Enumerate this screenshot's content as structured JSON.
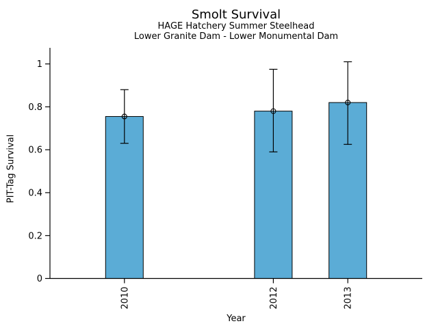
{
  "page": {
    "background": "#FFFFFF"
  },
  "chart_data": {
    "type": "bar",
    "title": "Smolt Survival",
    "subtitle_line1": "HAGE Hatchery Summer Steelhead",
    "subtitle_line2": "Lower Granite Dam - Lower Monumental Dam",
    "xlabel": "Year",
    "ylabel": "PIT-Tag Survival",
    "categories": [
      "2010",
      "2012",
      "2013"
    ],
    "x_numeric": [
      2010,
      2012,
      2013
    ],
    "x_domain": [
      2009,
      2014
    ],
    "series": [
      {
        "name": "PIT-Tag Survival",
        "values": [
          0.755,
          0.78,
          0.82
        ],
        "error_low": [
          0.63,
          0.59,
          0.625
        ],
        "error_high": [
          0.88,
          0.975,
          1.01
        ]
      }
    ],
    "yticks": [
      0,
      0.2,
      0.4,
      0.6,
      0.8,
      1
    ],
    "ytick_labels": [
      "0",
      "0.2",
      "0.4",
      "0.6",
      "0.8",
      "1"
    ],
    "ylim": [
      0,
      1.075
    ],
    "grid": false,
    "legend_position": "none",
    "marker": "open-circle",
    "bar_color": "#5BACD6",
    "bar_edge_color": "#000000",
    "error_bar_color": "#000000",
    "axis_color": "#000000",
    "text_color": "#000000"
  }
}
